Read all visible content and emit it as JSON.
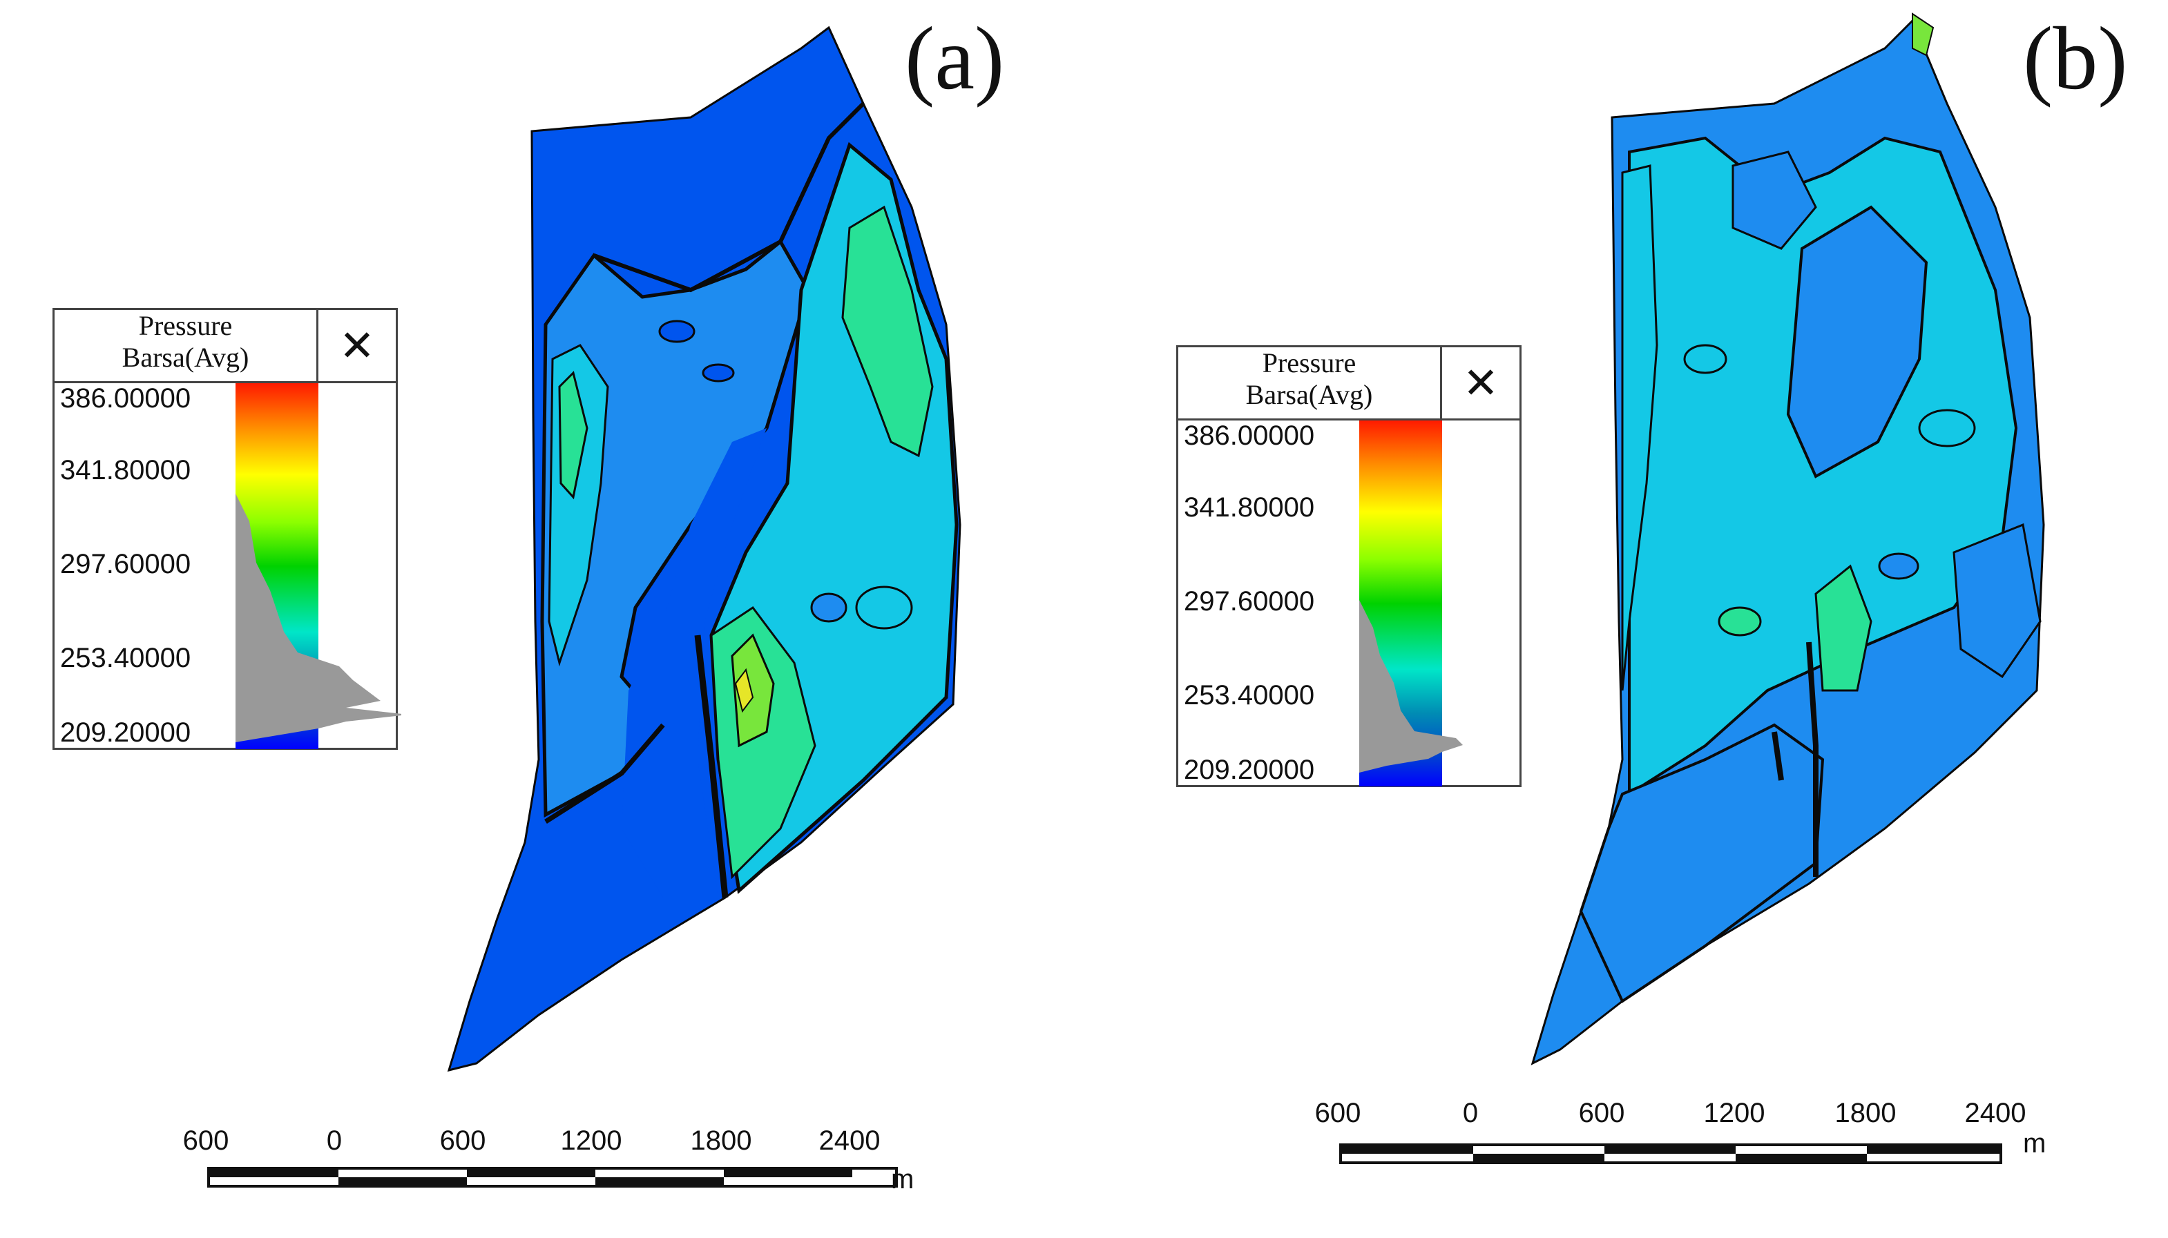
{
  "panels": {
    "a": {
      "label": "(a)",
      "legend": {
        "title_line1": "Pressure",
        "title_line2": "Barsa(Avg)",
        "close_symbol": "✕",
        "ticks": [
          "386.00000",
          "341.80000",
          "297.60000",
          "253.40000",
          "209.20000"
        ],
        "range": [
          209.2,
          386.0
        ]
      },
      "scale": {
        "labels": [
          "600",
          "0",
          "600",
          "1200",
          "1800",
          "2400"
        ],
        "unit": "m"
      }
    },
    "b": {
      "label": "(b)",
      "legend": {
        "title_line1": "Pressure",
        "title_line2": "Barsa(Avg)",
        "close_symbol": "✕",
        "ticks": [
          "386.00000",
          "341.80000",
          "297.60000",
          "253.40000",
          "209.20000"
        ],
        "range": [
          209.2,
          386.0
        ]
      },
      "scale": {
        "labels": [
          "600",
          "0",
          "600",
          "1200",
          "1800",
          "2400"
        ],
        "unit": "m"
      }
    }
  },
  "colors": {
    "colormap": [
      "#ff1a00",
      "#ff8c00",
      "#ffff00",
      "#8cff00",
      "#00d200",
      "#00e6c8",
      "#008cb4",
      "#0050c8",
      "#0000ff"
    ],
    "low_pressure_fill": "#0055ee",
    "mid_pressure_fill": "#1e8cf0",
    "cyan_fill": "#14c8e6",
    "green_fill": "#28e196",
    "high_fill": "#78e63c",
    "contour": "#0a0a0a",
    "histogram": "#999999"
  }
}
